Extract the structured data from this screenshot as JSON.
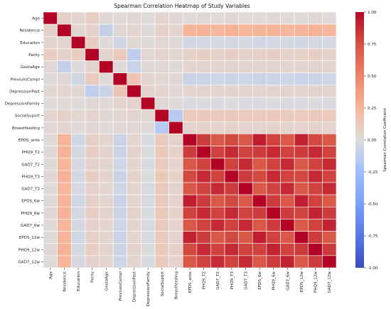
{
  "chart_data": {
    "type": "heatmap",
    "title": "Spearman Correlation Heatmap of Study Variables",
    "variables": [
      "Age",
      "Residence",
      "Education",
      "Parity",
      "GestaAge",
      "PreviuosCompl",
      "DepressionPast",
      "DepressionFamily",
      "SocialSuport",
      "Breastfeeding",
      "EPDS_ante",
      "PHQ9_T2",
      "GAD7_T2",
      "PHQ9_T3",
      "GAD7_T3",
      "EPDS_6w",
      "PHQ9_6w",
      "GAD7_6w",
      "EPDS_12w",
      "PHQ9_12w",
      "GAD7_12w"
    ],
    "matrix": [
      [
        1.0,
        0.08,
        0.05,
        0.1,
        0.03,
        0.02,
        0.04,
        0.01,
        0.05,
        0.03,
        0.02,
        0.03,
        0.02,
        0.03,
        0.02,
        0.02,
        0.03,
        0.02,
        0.02,
        0.03,
        0.02
      ],
      [
        0.08,
        1.0,
        0.05,
        0.07,
        -0.1,
        0.03,
        0.05,
        0.02,
        0.08,
        0.05,
        0.26,
        0.27,
        0.25,
        0.27,
        0.25,
        0.26,
        0.27,
        0.25,
        0.26,
        0.27,
        0.25
      ],
      [
        0.05,
        0.05,
        1.0,
        0.1,
        0.02,
        -0.05,
        0.03,
        0.01,
        0.04,
        0.02,
        -0.05,
        -0.04,
        -0.03,
        -0.04,
        -0.03,
        -0.05,
        -0.04,
        -0.03,
        -0.05,
        -0.04,
        -0.03
      ],
      [
        0.1,
        0.07,
        0.1,
        1.0,
        0.05,
        0.12,
        -0.12,
        0.03,
        0.06,
        0.04,
        0.08,
        0.09,
        0.07,
        0.09,
        0.07,
        0.08,
        0.09,
        0.07,
        0.08,
        0.09,
        0.07
      ],
      [
        0.03,
        -0.1,
        0.02,
        0.05,
        1.0,
        0.02,
        -0.08,
        0.02,
        0.03,
        0.02,
        0.05,
        0.06,
        0.05,
        0.06,
        0.05,
        0.05,
        0.06,
        0.05,
        0.05,
        0.06,
        0.05
      ],
      [
        0.02,
        0.03,
        -0.05,
        0.12,
        0.02,
        1.0,
        0.15,
        0.05,
        0.04,
        0.03,
        -0.08,
        -0.07,
        -0.06,
        -0.07,
        -0.06,
        -0.08,
        -0.07,
        -0.06,
        -0.08,
        -0.07,
        -0.06
      ],
      [
        0.04,
        0.05,
        0.03,
        -0.12,
        -0.08,
        0.15,
        1.0,
        0.06,
        0.05,
        0.03,
        0.05,
        0.06,
        0.05,
        0.06,
        0.05,
        0.05,
        0.06,
        0.05,
        0.05,
        0.06,
        0.05
      ],
      [
        0.01,
        0.02,
        0.01,
        0.03,
        0.02,
        0.05,
        0.06,
        1.0,
        0.04,
        0.02,
        -0.02,
        -0.01,
        -0.02,
        -0.01,
        -0.02,
        -0.02,
        -0.01,
        -0.02,
        -0.02,
        -0.01,
        -0.02
      ],
      [
        0.05,
        0.08,
        0.04,
        0.06,
        0.03,
        0.04,
        0.05,
        0.04,
        1.0,
        -0.15,
        0.12,
        0.13,
        0.12,
        0.13,
        0.12,
        0.12,
        0.13,
        0.12,
        0.12,
        0.13,
        0.12
      ],
      [
        0.03,
        0.05,
        0.02,
        0.04,
        0.02,
        0.03,
        0.03,
        0.02,
        -0.15,
        1.0,
        0.06,
        0.07,
        0.06,
        0.07,
        0.06,
        0.06,
        0.07,
        0.06,
        0.06,
        0.07,
        0.06
      ],
      [
        0.02,
        0.26,
        -0.05,
        0.08,
        0.05,
        -0.08,
        0.05,
        -0.02,
        0.12,
        0.06,
        1.0,
        0.82,
        0.72,
        0.78,
        0.72,
        0.92,
        0.8,
        0.72,
        0.9,
        0.78,
        0.72
      ],
      [
        0.03,
        0.27,
        -0.04,
        0.09,
        0.06,
        -0.07,
        0.06,
        -0.01,
        0.13,
        0.07,
        0.82,
        1.0,
        0.8,
        0.88,
        0.8,
        0.82,
        0.88,
        0.8,
        0.82,
        0.88,
        0.8
      ],
      [
        0.02,
        0.25,
        -0.03,
        0.07,
        0.05,
        -0.06,
        0.05,
        -0.02,
        0.12,
        0.06,
        0.72,
        0.8,
        1.0,
        0.8,
        0.88,
        0.72,
        0.8,
        0.88,
        0.72,
        0.8,
        0.88
      ],
      [
        0.03,
        0.27,
        -0.04,
        0.09,
        0.06,
        -0.07,
        0.06,
        -0.01,
        0.13,
        0.07,
        0.78,
        0.88,
        0.8,
        1.0,
        0.82,
        0.78,
        0.88,
        0.8,
        0.78,
        0.88,
        0.8
      ],
      [
        0.02,
        0.25,
        -0.03,
        0.07,
        0.05,
        -0.06,
        0.05,
        -0.02,
        0.12,
        0.06,
        0.72,
        0.8,
        0.88,
        0.82,
        1.0,
        0.72,
        0.8,
        0.88,
        0.72,
        0.8,
        0.88
      ],
      [
        0.02,
        0.26,
        -0.05,
        0.08,
        0.05,
        -0.08,
        0.05,
        -0.02,
        0.12,
        0.06,
        0.92,
        0.82,
        0.72,
        0.78,
        0.72,
        1.0,
        0.82,
        0.72,
        0.92,
        0.8,
        0.72
      ],
      [
        0.03,
        0.27,
        -0.04,
        0.09,
        0.06,
        -0.07,
        0.06,
        -0.01,
        0.13,
        0.07,
        0.8,
        0.88,
        0.8,
        0.88,
        0.8,
        0.82,
        1.0,
        0.82,
        0.8,
        0.9,
        0.82
      ],
      [
        0.02,
        0.25,
        -0.03,
        0.07,
        0.05,
        -0.06,
        0.05,
        -0.02,
        0.12,
        0.06,
        0.72,
        0.8,
        0.88,
        0.8,
        0.88,
        0.72,
        0.82,
        1.0,
        0.72,
        0.8,
        0.9
      ],
      [
        0.02,
        0.26,
        -0.05,
        0.08,
        0.05,
        -0.08,
        0.05,
        -0.02,
        0.12,
        0.06,
        0.9,
        0.82,
        0.72,
        0.78,
        0.72,
        0.92,
        0.8,
        0.72,
        1.0,
        0.82,
        0.72
      ],
      [
        0.03,
        0.27,
        -0.04,
        0.09,
        0.06,
        -0.07,
        0.06,
        -0.01,
        0.13,
        0.07,
        0.78,
        0.88,
        0.8,
        0.88,
        0.8,
        0.8,
        0.9,
        0.8,
        0.82,
        1.0,
        0.82
      ],
      [
        0.02,
        0.25,
        -0.03,
        0.07,
        0.05,
        -0.06,
        0.05,
        -0.02,
        0.12,
        0.06,
        0.72,
        0.8,
        0.88,
        0.8,
        0.88,
        0.72,
        0.82,
        0.9,
        0.72,
        0.82,
        1.0
      ]
    ],
    "colorbar": {
      "label": "Spearman Correlation Coefficient",
      "range": [
        -1.0,
        1.0
      ],
      "ticks": [
        "1.00",
        "0.75",
        "0.50",
        "0.25",
        "0.00",
        "-0.25",
        "-0.50",
        "-0.75",
        "-1.00"
      ],
      "colormap": "coolwarm"
    },
    "grid": true,
    "legend": "colorbar-right"
  }
}
